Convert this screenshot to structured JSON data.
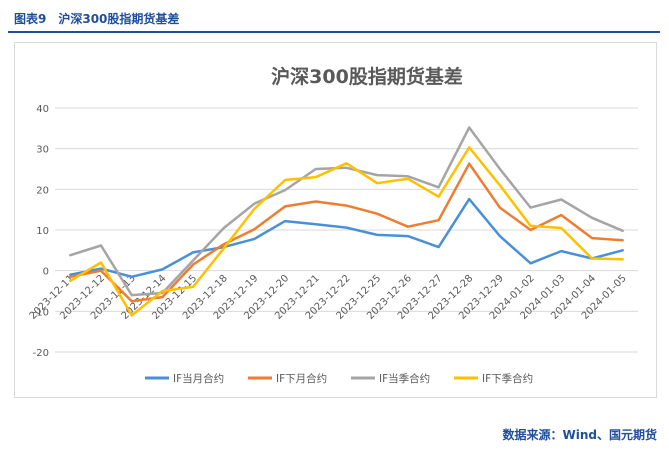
{
  "header": {
    "figure_number": "图表9",
    "figure_title": "沪深300股指期货基差"
  },
  "footer": {
    "source": "数据来源：Wind、国元期货"
  },
  "colors": {
    "brand": "#1f4e9a",
    "grid": "#d9d9d9",
    "axis_text": "#595959",
    "title_text": "#595959"
  },
  "chart_data": {
    "type": "line",
    "title": "沪深300股指期货基差",
    "ylim": [
      -20,
      40
    ],
    "yticks": [
      -20,
      -10,
      0,
      10,
      20,
      30,
      40
    ],
    "grid": true,
    "legend_position": "bottom",
    "x": [
      "2023-12-11",
      "2023-12-12",
      "2023-12-13",
      "2023-12-14",
      "2023-12-15",
      "2023-12-18",
      "2023-12-19",
      "2023-12-20",
      "2023-12-21",
      "2023-12-22",
      "2023-12-25",
      "2023-12-26",
      "2023-12-27",
      "2023-12-28",
      "2023-12-29",
      "2024-01-02",
      "2024-01-03",
      "2024-01-04",
      "2024-01-05"
    ],
    "series": [
      {
        "name": "IF当月合约",
        "color": "#4a90d9",
        "values": [
          -1,
          0.5,
          -1.5,
          0.3,
          4.5,
          5.8,
          7.8,
          12.2,
          11.4,
          10.6,
          8.8,
          8.5,
          5.8,
          17.6,
          8.5,
          1.8,
          4.8,
          3.0,
          5.0
        ]
      },
      {
        "name": "IF下月合约",
        "color": "#ed7d31",
        "values": [
          -1.5,
          0,
          -7.5,
          -6.5,
          1.5,
          6.5,
          10.2,
          15.8,
          17.0,
          16.0,
          14.0,
          10.8,
          12.4,
          26.3,
          15.5,
          10.0,
          13.7,
          8.0,
          7.5
        ]
      },
      {
        "name": "IF当季合约",
        "color": "#a5a5a5",
        "values": [
          3.8,
          6.2,
          -6,
          -5.5,
          2.5,
          10.5,
          16.5,
          19.8,
          25.0,
          25.3,
          23.5,
          23.2,
          20.5,
          35.2,
          25.0,
          15.5,
          17.5,
          13.0,
          9.8
        ]
      },
      {
        "name": "IF下季合约",
        "color": "#ffc000",
        "values": [
          -2.5,
          2,
          -11,
          -5,
          -4,
          5.5,
          15.2,
          22.3,
          23.0,
          26.4,
          21.5,
          22.6,
          18.2,
          30.3,
          21.0,
          11.0,
          10.5,
          3.0,
          2.8
        ]
      }
    ]
  }
}
